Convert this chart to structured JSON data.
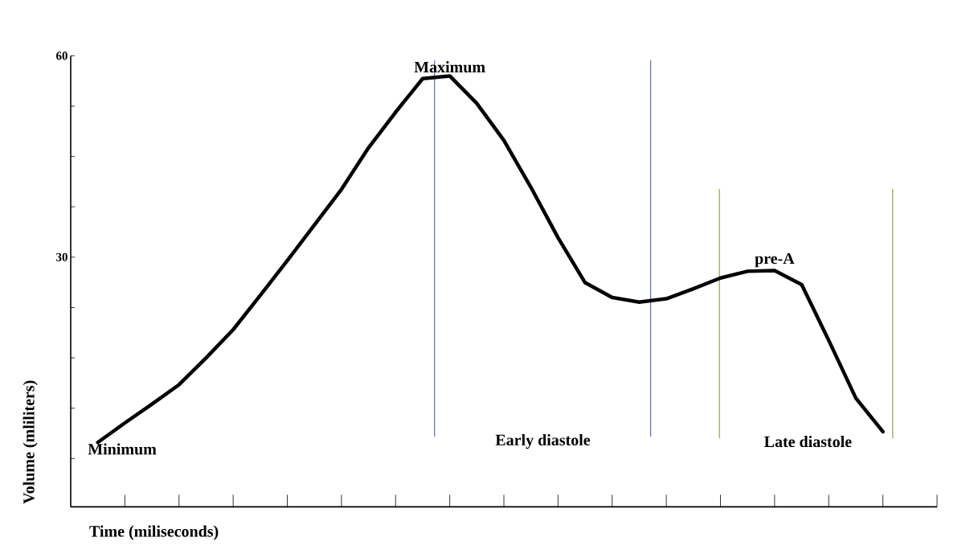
{
  "chart_data": {
    "type": "line",
    "xlabel": "Time (miliseconds)",
    "ylabel": "Volume (mliliters)",
    "categories": [
      null,
      null,
      null,
      null,
      null,
      null,
      null,
      null,
      null,
      null,
      null,
      null,
      null,
      null,
      null,
      null,
      null,
      null,
      null,
      null,
      null,
      null,
      null,
      null,
      null,
      null,
      null,
      null,
      null,
      null
    ],
    "series": [
      {
        "color": "#000000",
        "values": [
          2.4,
          5.3,
          8.1,
          11.0,
          15.0,
          19.2,
          24.3,
          29.5,
          34.8,
          40.1,
          46.3,
          51.6,
          56.6,
          57.0,
          52.9,
          47.4,
          40.4,
          32.9,
          26.2,
          24.0,
          23.3,
          23.8,
          25.3,
          26.9,
          27.9,
          28.0,
          25.9,
          17.6,
          9.0,
          4.0
        ]
      }
    ],
    "ylim": [
      -7.2,
      60
    ],
    "yticks": [
      {
        "value": 0,
        "label": null
      },
      {
        "value": 7.5,
        "label": null
      },
      {
        "value": 15,
        "label": null
      },
      {
        "value": 22.5,
        "label": null
      },
      30,
      {
        "value": 37.5,
        "label": null
      },
      {
        "value": 45,
        "label": null
      },
      {
        "value": 52.5,
        "label": null
      },
      60
    ],
    "annotations": [
      {
        "text": "Maximum",
        "y": 57.0
      },
      "Minimum",
      {
        "text": "pre-A",
        "y": 28.0
      },
      "Early diastole",
      "Late diastole"
    ]
  }
}
